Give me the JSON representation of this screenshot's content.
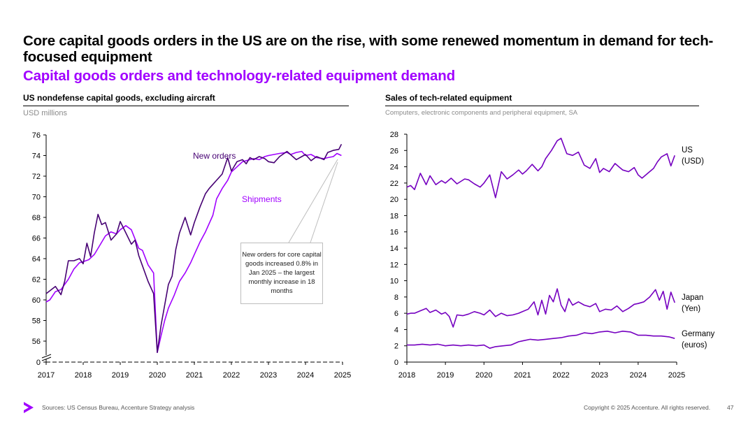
{
  "title": "Core capital goods orders in the US are on the rise, with some renewed momentum in demand for tech-focused equipment",
  "subtitle": "Capital goods orders and technology-related equipment demand",
  "footer": {
    "sources": "Sources: US Census Bureau, Accenture Strategy analysis",
    "copyright": "Copyright © 2025 Accenture. All rights reserved.",
    "page": "47"
  },
  "colors": {
    "accent": "#a100ff",
    "dark_purple": "#460073",
    "mid_purple": "#7500c0"
  },
  "chart_data": [
    {
      "type": "line",
      "title": "US nondefense capital goods, excluding aircraft",
      "unit": "USD millions",
      "ylim": [
        54.5,
        76
      ],
      "yticks": [
        "56",
        "58",
        "60",
        "62",
        "64",
        "66",
        "68",
        "70",
        "72",
        "74",
        "76"
      ],
      "ybreak_label": "0",
      "xlim": [
        2017,
        2025
      ],
      "xticks": [
        "2017",
        "2018",
        "2019",
        "2020",
        "2021",
        "2022",
        "2023",
        "2024",
        "2025"
      ],
      "annotation": "New orders for core capital goods increased 0.8% in Jan 2025 – the largest monthly increase in 18 months",
      "series": [
        {
          "name": "New orders",
          "color": "#460073",
          "x": [
            2017.0,
            2017.25,
            2017.4,
            2017.5,
            2017.6,
            2017.75,
            2017.9,
            2018.0,
            2018.1,
            2018.2,
            2018.3,
            2018.4,
            2018.5,
            2018.6,
            2018.75,
            2018.9,
            2019.0,
            2019.15,
            2019.3,
            2019.4,
            2019.5,
            2019.6,
            2019.75,
            2019.9,
            2020.0,
            2020.1,
            2020.2,
            2020.3,
            2020.4,
            2020.5,
            2020.6,
            2020.75,
            2020.9,
            2021.0,
            2021.15,
            2021.3,
            2021.4,
            2021.5,
            2021.6,
            2021.75,
            2021.9,
            2022.0,
            2022.15,
            2022.3,
            2022.4,
            2022.5,
            2022.6,
            2022.75,
            2022.9,
            2023.0,
            2023.15,
            2023.3,
            2023.5,
            2023.75,
            2024.0,
            2024.15,
            2024.3,
            2024.5,
            2024.6,
            2024.75,
            2024.9,
            2024.97
          ],
          "values": [
            60.6,
            61.3,
            60.5,
            61.8,
            63.8,
            63.8,
            64.0,
            63.5,
            65.5,
            64.2,
            66.5,
            68.3,
            67.3,
            67.5,
            65.8,
            66.4,
            67.6,
            66.5,
            65.4,
            65.8,
            64.3,
            63.3,
            61.8,
            60.6,
            54.9,
            57.5,
            59.5,
            61.5,
            62.3,
            64.9,
            66.5,
            68.0,
            66.3,
            67.5,
            69.0,
            70.3,
            70.8,
            71.2,
            71.6,
            72.2,
            73.8,
            72.5,
            73.4,
            73.6,
            73.2,
            73.8,
            73.6,
            73.9,
            73.7,
            73.4,
            73.3,
            73.9,
            74.4,
            73.6,
            74.1,
            73.5,
            73.9,
            73.6,
            74.3,
            74.5,
            74.6,
            75.1
          ]
        },
        {
          "name": "Shipments",
          "color": "#a100ff",
          "x": [
            2017.0,
            2017.1,
            2017.25,
            2017.4,
            2017.6,
            2017.75,
            2017.9,
            2018.0,
            2018.15,
            2018.3,
            2018.5,
            2018.6,
            2018.75,
            2018.9,
            2019.0,
            2019.15,
            2019.3,
            2019.5,
            2019.6,
            2019.75,
            2019.9,
            2020.0,
            2020.1,
            2020.2,
            2020.3,
            2020.45,
            2020.6,
            2020.75,
            2020.9,
            2021.0,
            2021.15,
            2021.3,
            2021.5,
            2021.6,
            2021.75,
            2021.9,
            2022.0,
            2022.15,
            2022.3,
            2022.5,
            2022.6,
            2022.75,
            2022.9,
            2023.0,
            2023.15,
            2023.3,
            2023.5,
            2023.6,
            2023.75,
            2023.9,
            2024.0,
            2024.15,
            2024.3,
            2024.5,
            2024.6,
            2024.75,
            2024.85,
            2024.97
          ],
          "values": [
            59.8,
            60.0,
            60.8,
            61.0,
            62.0,
            63.0,
            63.6,
            63.7,
            63.9,
            64.4,
            65.6,
            66.2,
            66.6,
            66.4,
            66.8,
            67.2,
            66.8,
            65.0,
            64.8,
            63.4,
            62.6,
            54.9,
            56.5,
            58.0,
            59.2,
            60.4,
            61.8,
            62.6,
            63.6,
            64.4,
            65.6,
            66.6,
            68.2,
            69.8,
            70.8,
            71.6,
            72.4,
            72.9,
            73.4,
            73.6,
            73.7,
            73.6,
            73.9,
            74.0,
            74.1,
            74.2,
            74.3,
            74.1,
            74.3,
            74.4,
            74.0,
            74.1,
            73.8,
            73.7,
            73.8,
            73.9,
            74.2,
            74.0
          ]
        }
      ]
    },
    {
      "type": "line",
      "title": "Sales of tech-related equipment",
      "unit": "Computers, electronic components and peripheral equipment, SA",
      "ylim": [
        0,
        28
      ],
      "yticks": [
        "0",
        "2",
        "4",
        "6",
        "8",
        "10",
        "12",
        "14",
        "16",
        "18",
        "20",
        "22",
        "24",
        "26",
        "28"
      ],
      "xlim": [
        2018,
        2025
      ],
      "xticks": [
        "2018",
        "2019",
        "2020",
        "2021",
        "2022",
        "2023",
        "2024",
        "2025"
      ],
      "series": [
        {
          "name_line1": "US",
          "name_line2": "(USD)",
          "color": "#7500c0",
          "x": [
            2018.0,
            2018.1,
            2018.2,
            2018.35,
            2018.5,
            2018.6,
            2018.75,
            2018.9,
            2019.0,
            2019.15,
            2019.3,
            2019.5,
            2019.6,
            2019.75,
            2019.9,
            2020.0,
            2020.15,
            2020.3,
            2020.45,
            2020.6,
            2020.75,
            2020.9,
            2021.0,
            2021.1,
            2021.25,
            2021.4,
            2021.5,
            2021.6,
            2021.75,
            2021.9,
            2022.0,
            2022.15,
            2022.3,
            2022.45,
            2022.6,
            2022.75,
            2022.9,
            2023.0,
            2023.1,
            2023.25,
            2023.4,
            2023.5,
            2023.6,
            2023.75,
            2023.9,
            2024.0,
            2024.1,
            2024.25,
            2024.4,
            2024.5,
            2024.6,
            2024.75,
            2024.85,
            2024.95
          ],
          "values": [
            21.5,
            21.7,
            21.2,
            23.2,
            21.8,
            22.9,
            21.8,
            22.3,
            22.0,
            22.6,
            21.9,
            22.5,
            22.4,
            21.9,
            21.5,
            22.0,
            23.0,
            20.2,
            23.4,
            22.5,
            23.0,
            23.6,
            23.1,
            23.5,
            24.3,
            23.5,
            24.0,
            25.0,
            26.0,
            27.2,
            27.5,
            25.6,
            25.4,
            25.8,
            24.2,
            23.8,
            25.0,
            23.3,
            23.8,
            23.4,
            24.4,
            24.0,
            23.6,
            23.4,
            23.9,
            23.0,
            22.6,
            23.2,
            23.8,
            24.6,
            25.2,
            25.6,
            24.1,
            25.4
          ]
        },
        {
          "name_line1": "Japan",
          "name_line2": "(Yen)",
          "color": "#7500c0",
          "x": [
            2018.0,
            2018.1,
            2018.2,
            2018.35,
            2018.5,
            2018.6,
            2018.75,
            2018.9,
            2019.0,
            2019.1,
            2019.2,
            2019.3,
            2019.45,
            2019.6,
            2019.75,
            2019.9,
            2020.0,
            2020.15,
            2020.3,
            2020.45,
            2020.6,
            2020.75,
            2020.9,
            2021.0,
            2021.15,
            2021.3,
            2021.4,
            2021.5,
            2021.6,
            2021.7,
            2021.8,
            2021.9,
            2022.0,
            2022.1,
            2022.2,
            2022.3,
            2022.45,
            2022.6,
            2022.75,
            2022.9,
            2023.0,
            2023.15,
            2023.3,
            2023.45,
            2023.6,
            2023.75,
            2023.9,
            2024.0,
            2024.15,
            2024.3,
            2024.45,
            2024.55,
            2024.65,
            2024.75,
            2024.85,
            2024.95
          ],
          "values": [
            5.9,
            6.0,
            6.0,
            6.3,
            6.6,
            6.1,
            6.4,
            5.9,
            6.1,
            5.6,
            4.3,
            5.8,
            5.7,
            5.9,
            6.2,
            6.0,
            5.8,
            6.4,
            5.6,
            6.0,
            5.7,
            5.8,
            6.0,
            6.2,
            6.5,
            7.4,
            5.8,
            7.6,
            5.9,
            8.2,
            7.4,
            9.0,
            7.0,
            6.2,
            7.8,
            7.0,
            7.4,
            7.0,
            6.8,
            7.2,
            6.2,
            6.5,
            6.4,
            6.9,
            6.2,
            6.6,
            7.1,
            7.2,
            7.4,
            8.0,
            8.9,
            7.6,
            8.7,
            6.5,
            8.6,
            7.3
          ]
        },
        {
          "name_line1": "Germany",
          "name_line2": "(euros)",
          "color": "#7500c0",
          "x": [
            2018.0,
            2018.2,
            2018.4,
            2018.6,
            2018.8,
            2019.0,
            2019.2,
            2019.4,
            2019.6,
            2019.8,
            2020.0,
            2020.15,
            2020.3,
            2020.5,
            2020.7,
            2020.9,
            2021.0,
            2021.2,
            2021.4,
            2021.6,
            2021.8,
            2022.0,
            2022.2,
            2022.4,
            2022.6,
            2022.8,
            2023.0,
            2023.2,
            2023.4,
            2023.6,
            2023.8,
            2024.0,
            2024.2,
            2024.4,
            2024.6,
            2024.8,
            2024.95
          ],
          "values": [
            2.1,
            2.1,
            2.2,
            2.1,
            2.2,
            2.0,
            2.1,
            2.0,
            2.1,
            2.0,
            2.1,
            1.7,
            1.9,
            2.0,
            2.1,
            2.5,
            2.6,
            2.8,
            2.7,
            2.8,
            2.9,
            3.0,
            3.2,
            3.3,
            3.6,
            3.5,
            3.7,
            3.8,
            3.6,
            3.8,
            3.7,
            3.3,
            3.3,
            3.2,
            3.2,
            3.1,
            2.9
          ]
        }
      ]
    }
  ]
}
